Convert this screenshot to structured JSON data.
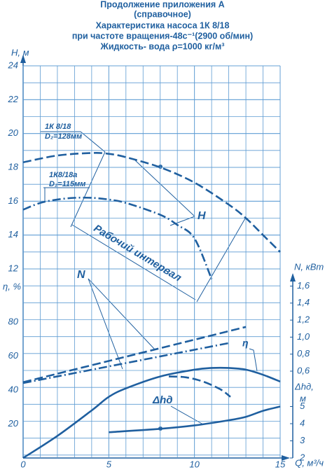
{
  "chart_data": {
    "type": "line",
    "title": [
      "Продолжение приложения А",
      "(справочное)",
      "Характеристика насоса 1К 8/18",
      "при частоте вращения-48с⁻¹(2900 об/мин)",
      "Жидкость- вода ρ=1000 кг/м³"
    ],
    "x_label": "Q, м³/ч",
    "xlim": [
      0,
      15
    ],
    "xticks": [
      0,
      5,
      10,
      15
    ],
    "grid": true,
    "color": "#1f5f9f",
    "axes": {
      "y": {
        "label": "Н, м",
        "lim": [
          12,
          24
        ],
        "ticks": [
          12,
          14,
          16,
          18,
          20,
          22,
          24
        ]
      },
      "y2": {
        "label": "η, %",
        "lim": [
          0,
          80
        ],
        "ticks": [
          20,
          40,
          60,
          80
        ]
      },
      "y3": {
        "label": "N, кВт",
        "lim": [
          0.6,
          1.6
        ],
        "ticks": [
          {
            "value": 0.6,
            "label": "0,6"
          },
          {
            "value": 0.8,
            "label": "0,8"
          },
          {
            "value": 1.0,
            "label": "1,0"
          },
          {
            "value": 1.2,
            "label": "1,2"
          },
          {
            "value": 1.4,
            "label": "1,4"
          },
          {
            "value": 1.6,
            "label": "1,6"
          }
        ]
      },
      "y4": {
        "label": [
          "Δhд,",
          "м"
        ],
        "lim": [
          2,
          5
        ],
        "ticks": [
          2,
          3,
          4,
          5
        ]
      }
    },
    "series": [
      {
        "axis": "y",
        "style": "dashed",
        "x": [
          0,
          2,
          4,
          5,
          6,
          8,
          10,
          12,
          13,
          14,
          15
        ],
        "values": [
          18.3,
          18.7,
          18.85,
          18.8,
          18.6,
          18.0,
          17.1,
          15.8,
          15.0,
          14.0,
          13.0
        ]
      },
      {
        "axis": "y",
        "style": "dashdot",
        "x": [
          0,
          1,
          2,
          3,
          4,
          5,
          6,
          8,
          9,
          10,
          11
        ],
        "values": [
          15.5,
          15.9,
          16.1,
          16.2,
          16.2,
          16.1,
          15.9,
          15.2,
          14.6,
          13.8,
          11.4
        ]
      },
      {
        "axis": "y2",
        "style": "solid",
        "x": [
          0,
          2,
          4,
          5,
          6,
          8,
          10,
          11,
          12,
          13,
          14,
          15
        ],
        "values": [
          0,
          13,
          28,
          36,
          41,
          48,
          52,
          53,
          53,
          52,
          49,
          45
        ]
      },
      {
        "axis": "y2",
        "style": "dashed",
        "x": [
          8.5,
          9.5,
          10.5,
          11.5,
          12.1
        ],
        "values": [
          48,
          47.5,
          45,
          40.5,
          36
        ]
      },
      {
        "axis": "y3",
        "style": "dashed",
        "x": [
          0,
          13
        ],
        "values": [
          0.47,
          1.12
        ]
      },
      {
        "axis": "y3",
        "style": "dashdot",
        "x": [
          0,
          12
        ],
        "values": [
          0.46,
          0.93
        ]
      },
      {
        "axis": "y4",
        "style": "solid",
        "x": [
          5,
          8,
          10,
          12,
          13,
          14,
          15
        ],
        "values": [
          3.5,
          3.7,
          3.9,
          4.2,
          4.4,
          4.75,
          5.0
        ]
      }
    ],
    "annotations": [
      "1К 8/18",
      "D₂=128мм",
      "1К8/18а",
      "D₂=115мм",
      "Н",
      "N",
      "η",
      "Δhд",
      "Рабочий интервал"
    ]
  }
}
